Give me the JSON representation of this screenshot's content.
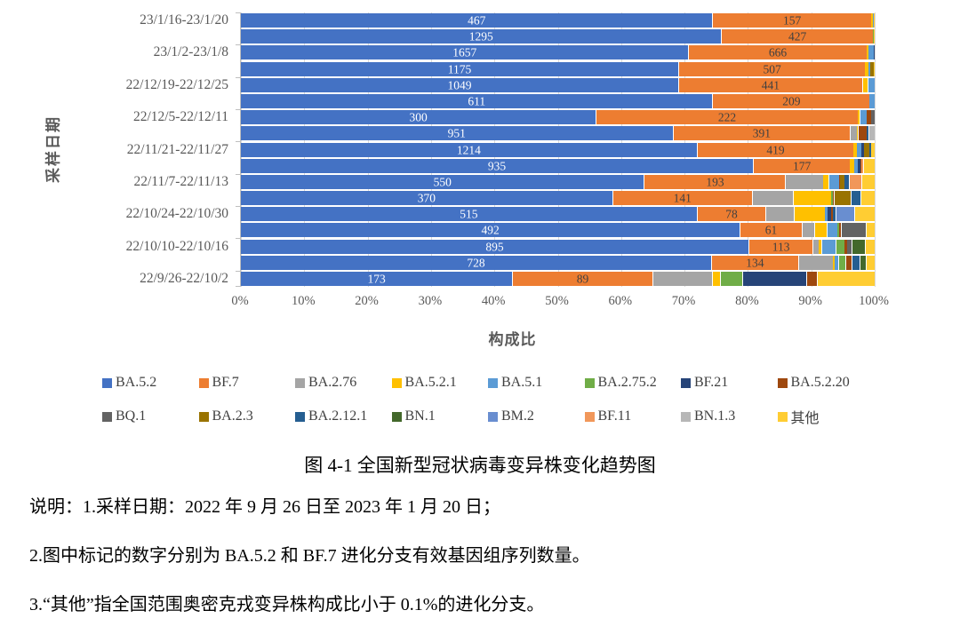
{
  "chart_data": {
    "type": "bar",
    "stacked": true,
    "orientation": "horizontal",
    "unit": "percent",
    "xlabel": "构成比",
    "ylabel": "采样日期",
    "xlim": [
      0,
      100
    ],
    "grid": "vertical, every 10%",
    "legend_position": "bottom, 2 rows",
    "x_ticks": [
      "0%",
      "10%",
      "20%",
      "30%",
      "40%",
      "50%",
      "60%",
      "70%",
      "80%",
      "90%",
      "100%"
    ],
    "series_names": [
      "BA.5.2",
      "BF.7",
      "BA.2.76",
      "BA.5.2.1",
      "BA.5.1",
      "BA.2.75.2",
      "BF.21",
      "BA.5.2.20",
      "BQ.1",
      "BA.2.3",
      "BA.2.12.1",
      "BN.1",
      "BM.2",
      "BF.11",
      "BN.1.3",
      "其他"
    ],
    "series_colors": [
      "#4472C4",
      "#ED7D31",
      "#A5A5A5",
      "#FFC000",
      "#5B9BD5",
      "#70AD47",
      "#264478",
      "#9E480E",
      "#636363",
      "#997300",
      "#255E91",
      "#43682B",
      "#698ED0",
      "#F1975A",
      "#B7B7B7",
      "#FFCD33"
    ],
    "rows_order": "top to bottom, most recent week first; values are composition percentages per clade; ba52_seq / bf7_seq are the labeled effective genome sequence counts",
    "rows": [
      {
        "label": "23/1/16-23/1/20",
        "ba52_seq": 467,
        "bf7_seq": 157,
        "values": [
          74.4,
          25.0,
          0,
          0.3,
          0.2,
          0,
          0,
          0,
          0,
          0,
          0,
          0,
          0,
          0,
          0,
          0.1
        ]
      },
      {
        "label": "",
        "ba52_seq": 1295,
        "bf7_seq": 427,
        "values": [
          75.8,
          23.9,
          0,
          0,
          0,
          0.1,
          0,
          0,
          0,
          0.1,
          0,
          0,
          0,
          0,
          0,
          0.1
        ]
      },
      {
        "label": "23/1/2-23/1/8",
        "ba52_seq": 1657,
        "bf7_seq": 666,
        "values": [
          70.6,
          28.1,
          0,
          0.3,
          0.8,
          0,
          0.2,
          0,
          0,
          0,
          0,
          0,
          0,
          0,
          0,
          0
        ]
      },
      {
        "label": "",
        "ba52_seq": 1175,
        "bf7_seq": 507,
        "values": [
          69.0,
          29.5,
          0,
          0.5,
          0.3,
          0,
          0,
          0,
          0,
          0.5,
          0,
          0,
          0,
          0,
          0,
          0.2
        ]
      },
      {
        "label": "22/12/19-22/12/25",
        "ba52_seq": 1049,
        "bf7_seq": 441,
        "values": [
          69.0,
          29.0,
          0,
          0.9,
          1.1,
          0,
          0,
          0,
          0,
          0,
          0,
          0,
          0,
          0,
          0,
          0
        ]
      },
      {
        "label": "",
        "ba52_seq": 611,
        "bf7_seq": 209,
        "values": [
          74.4,
          24.8,
          0,
          0,
          0.8,
          0,
          0,
          0,
          0,
          0,
          0,
          0,
          0,
          0,
          0,
          0
        ]
      },
      {
        "label": "22/12/5-22/12/11",
        "ba52_seq": 300,
        "bf7_seq": 222,
        "values": [
          56.0,
          41.3,
          0,
          0.3,
          1.2,
          0,
          0,
          0.7,
          0.5,
          0,
          0,
          0,
          0,
          0,
          0,
          0
        ]
      },
      {
        "label": "",
        "ba52_seq": 951,
        "bf7_seq": 391,
        "values": [
          68.1,
          28.0,
          1.1,
          0.2,
          0,
          0,
          0,
          1.3,
          0,
          0,
          0.3,
          0,
          0,
          0,
          1.0,
          0
        ]
      },
      {
        "label": "22/11/21-22/11/27",
        "ba52_seq": 1214,
        "bf7_seq": 419,
        "values": [
          71.9,
          24.8,
          0,
          0.5,
          0.7,
          0,
          0.4,
          0,
          0,
          0.8,
          0.4,
          0,
          0,
          0,
          0,
          0.5
        ]
      },
      {
        "label": "",
        "ba52_seq": 935,
        "bf7_seq": 177,
        "values": [
          80.8,
          15.3,
          0,
          0.7,
          0.6,
          0,
          0.3,
          0.2,
          0,
          0,
          0,
          0,
          0,
          0.3,
          0,
          1.8
        ]
      },
      {
        "label": "22/11/7-22/11/13",
        "ba52_seq": 550,
        "bf7_seq": 193,
        "values": [
          63.6,
          22.3,
          6.0,
          0.8,
          1.7,
          0,
          0,
          0.2,
          0,
          0.7,
          0.6,
          0,
          0,
          2.0,
          0,
          2.1
        ]
      },
      {
        "label": "",
        "ba52_seq": 370,
        "bf7_seq": 141,
        "values": [
          58.6,
          22.0,
          6.5,
          6.0,
          0,
          0.3,
          0,
          0.2,
          0,
          2.6,
          1.5,
          0,
          0,
          0,
          0,
          2.3
        ]
      },
      {
        "label": "22/10/24-22/10/30",
        "ba52_seq": 515,
        "bf7_seq": 78,
        "values": [
          71.9,
          10.9,
          4.4,
          5.0,
          0.4,
          0,
          0.5,
          0.3,
          0,
          0,
          0.4,
          0,
          3.0,
          0,
          0,
          3.2
        ]
      },
      {
        "label": "",
        "ba52_seq": 492,
        "bf7_seq": 61,
        "values": [
          78.7,
          9.8,
          2.0,
          2.0,
          1.6,
          0.3,
          0,
          0.3,
          3.9,
          0,
          0,
          0,
          0,
          0,
          0,
          1.4
        ]
      },
      {
        "label": "22/10/10-22/10/16",
        "ba52_seq": 895,
        "bf7_seq": 113,
        "values": [
          80.1,
          10.1,
          0.9,
          0.5,
          2.2,
          1.5,
          0,
          0.4,
          0.6,
          0,
          0,
          2.2,
          0,
          0,
          0,
          1.5
        ]
      },
      {
        "label": "",
        "ba52_seq": 728,
        "bf7_seq": 134,
        "values": [
          74.2,
          13.7,
          5.5,
          0.3,
          0.5,
          1.2,
          0,
          1.0,
          0,
          0,
          1.2,
          1.0,
          0,
          0,
          0,
          1.4
        ]
      },
      {
        "label": "22/9/26-22/10/2",
        "ba52_seq": 173,
        "bf7_seq": 89,
        "values": [
          42.8,
          22.1,
          9.5,
          1.2,
          0,
          3.5,
          10.1,
          1.7,
          0,
          0,
          0,
          0,
          0,
          0,
          0,
          9.1
        ]
      }
    ]
  },
  "texts": {
    "caption": "图 4-1 全国新型冠状病毒变异株变化趋势图",
    "notes": [
      "说明：1.采样日期：2022 年 9 月 26 日至 2023 年 1 月 20 日；",
      "2.图中标记的数字分别为 BA.5.2 和 BF.7 进化分支有效基因组序列数量。",
      "3.“其他”指全国范围奥密克戎变异株构成比小于 0.1%的进化分支。"
    ]
  }
}
